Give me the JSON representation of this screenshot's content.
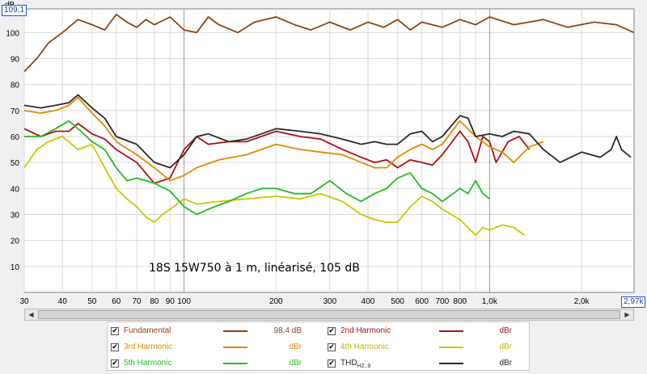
{
  "chart_data": {
    "type": "line",
    "annotation": "18S 15W750 à 1 m, linéarisé, 105 dB",
    "ylabel": "dB",
    "ylim": [
      0,
      109.1
    ],
    "xlim": [
      30,
      2970
    ],
    "x_scale": "log",
    "y_top_readout": "109,1",
    "x_right_readout": "2,97k",
    "y_ticks": [
      10,
      20,
      30,
      40,
      50,
      60,
      70,
      80,
      90,
      100
    ],
    "x_ticks": [
      {
        "v": 30,
        "label": "30"
      },
      {
        "v": 40,
        "label": "40"
      },
      {
        "v": 50,
        "label": "50"
      },
      {
        "v": 60,
        "label": "60"
      },
      {
        "v": 70,
        "label": "70"
      },
      {
        "v": 80,
        "label": "80"
      },
      {
        "v": 90,
        "label": "90"
      },
      {
        "v": 100,
        "label": "100"
      },
      {
        "v": 200,
        "label": "200"
      },
      {
        "v": 300,
        "label": "300"
      },
      {
        "v": 400,
        "label": "400"
      },
      {
        "v": 500,
        "label": "500"
      },
      {
        "v": 600,
        "label": "600"
      },
      {
        "v": 700,
        "label": "700"
      },
      {
        "v": 800,
        "label": "800"
      },
      {
        "v": 1000,
        "label": "1,0k"
      },
      {
        "v": 2000,
        "label": "2,0k"
      }
    ],
    "grid": true,
    "series": [
      {
        "name": "Fundamental",
        "color": "#8b4513",
        "value": "98,4 dB",
        "points": [
          [
            30,
            85
          ],
          [
            33,
            90
          ],
          [
            36,
            96
          ],
          [
            40,
            100
          ],
          [
            45,
            105
          ],
          [
            50,
            103
          ],
          [
            55,
            101
          ],
          [
            60,
            107
          ],
          [
            65,
            104
          ],
          [
            70,
            102
          ],
          [
            75,
            105
          ],
          [
            80,
            103
          ],
          [
            90,
            106
          ],
          [
            100,
            101
          ],
          [
            110,
            100
          ],
          [
            120,
            106
          ],
          [
            130,
            103
          ],
          [
            150,
            100
          ],
          [
            170,
            104
          ],
          [
            200,
            106
          ],
          [
            230,
            103
          ],
          [
            260,
            101
          ],
          [
            300,
            104
          ],
          [
            350,
            101
          ],
          [
            400,
            104
          ],
          [
            450,
            102
          ],
          [
            500,
            105
          ],
          [
            550,
            101
          ],
          [
            600,
            104
          ],
          [
            700,
            102
          ],
          [
            800,
            105
          ],
          [
            900,
            103
          ],
          [
            1000,
            106
          ],
          [
            1200,
            103
          ],
          [
            1500,
            105
          ],
          [
            1800,
            102
          ],
          [
            2200,
            104
          ],
          [
            2600,
            103
          ],
          [
            2970,
            100
          ]
        ]
      },
      {
        "name": "2nd Harmonic",
        "color": "#b01010",
        "value": "dBr",
        "points": [
          [
            30,
            63
          ],
          [
            34,
            60
          ],
          [
            38,
            62
          ],
          [
            42,
            62
          ],
          [
            45,
            65
          ],
          [
            50,
            61
          ],
          [
            55,
            59
          ],
          [
            60,
            55
          ],
          [
            70,
            50
          ],
          [
            80,
            42
          ],
          [
            90,
            44
          ],
          [
            100,
            55
          ],
          [
            110,
            60
          ],
          [
            120,
            57
          ],
          [
            140,
            58
          ],
          [
            160,
            58
          ],
          [
            200,
            62
          ],
          [
            240,
            60
          ],
          [
            280,
            59
          ],
          [
            330,
            55
          ],
          [
            380,
            52
          ],
          [
            420,
            50
          ],
          [
            460,
            51
          ],
          [
            500,
            48
          ],
          [
            550,
            51
          ],
          [
            600,
            50
          ],
          [
            650,
            49
          ],
          [
            700,
            53
          ],
          [
            800,
            62
          ],
          [
            850,
            58
          ],
          [
            900,
            50
          ],
          [
            950,
            60
          ],
          [
            1000,
            58
          ],
          [
            1050,
            50
          ],
          [
            1150,
            58
          ],
          [
            1250,
            60
          ],
          [
            1350,
            55
          ]
        ]
      },
      {
        "name": "3rd Harmonic",
        "color": "#e08a00",
        "value": "dBr",
        "points": [
          [
            30,
            70
          ],
          [
            34,
            69
          ],
          [
            38,
            70
          ],
          [
            42,
            72
          ],
          [
            45,
            75
          ],
          [
            50,
            69
          ],
          [
            55,
            64
          ],
          [
            60,
            58
          ],
          [
            70,
            53
          ],
          [
            80,
            48
          ],
          [
            90,
            43
          ],
          [
            100,
            45
          ],
          [
            110,
            48
          ],
          [
            130,
            51
          ],
          [
            160,
            53
          ],
          [
            200,
            57
          ],
          [
            240,
            55
          ],
          [
            280,
            54
          ],
          [
            330,
            53
          ],
          [
            380,
            50
          ],
          [
            420,
            48
          ],
          [
            460,
            48
          ],
          [
            500,
            52
          ],
          [
            550,
            55
          ],
          [
            600,
            57
          ],
          [
            650,
            55
          ],
          [
            700,
            57
          ],
          [
            800,
            66
          ],
          [
            900,
            60
          ],
          [
            1000,
            56
          ],
          [
            1100,
            54
          ],
          [
            1200,
            50
          ],
          [
            1350,
            56
          ],
          [
            1500,
            58
          ]
        ]
      },
      {
        "name": "4th Harmonic",
        "color": "#c8c800",
        "value": "dBr",
        "points": [
          [
            30,
            48
          ],
          [
            33,
            55
          ],
          [
            36,
            58
          ],
          [
            40,
            60
          ],
          [
            45,
            55
          ],
          [
            50,
            57
          ],
          [
            55,
            48
          ],
          [
            60,
            40
          ],
          [
            65,
            36
          ],
          [
            70,
            33
          ],
          [
            75,
            29
          ],
          [
            80,
            27
          ],
          [
            85,
            30
          ],
          [
            90,
            32
          ],
          [
            100,
            36
          ],
          [
            110,
            34
          ],
          [
            130,
            35
          ],
          [
            160,
            36
          ],
          [
            200,
            37
          ],
          [
            240,
            36
          ],
          [
            280,
            38
          ],
          [
            330,
            35
          ],
          [
            380,
            30
          ],
          [
            420,
            28
          ],
          [
            460,
            27
          ],
          [
            500,
            27
          ],
          [
            550,
            33
          ],
          [
            600,
            37
          ],
          [
            650,
            35
          ],
          [
            700,
            32
          ],
          [
            800,
            28
          ],
          [
            900,
            22
          ],
          [
            950,
            25
          ],
          [
            1000,
            24
          ],
          [
            1100,
            26
          ],
          [
            1200,
            25
          ],
          [
            1300,
            22
          ]
        ]
      },
      {
        "name": "5th Harmonic",
        "color": "#22bb22",
        "value": "dBr",
        "points": [
          [
            30,
            60
          ],
          [
            34,
            60
          ],
          [
            38,
            63
          ],
          [
            42,
            66
          ],
          [
            46,
            62
          ],
          [
            50,
            58
          ],
          [
            55,
            55
          ],
          [
            60,
            48
          ],
          [
            65,
            43
          ],
          [
            70,
            44
          ],
          [
            80,
            42
          ],
          [
            90,
            39
          ],
          [
            100,
            33
          ],
          [
            110,
            30
          ],
          [
            120,
            32
          ],
          [
            140,
            35
          ],
          [
            160,
            38
          ],
          [
            180,
            40
          ],
          [
            200,
            40
          ],
          [
            230,
            38
          ],
          [
            260,
            38
          ],
          [
            300,
            43
          ],
          [
            340,
            38
          ],
          [
            380,
            35
          ],
          [
            420,
            38
          ],
          [
            460,
            40
          ],
          [
            500,
            44
          ],
          [
            550,
            46
          ],
          [
            600,
            40
          ],
          [
            650,
            38
          ],
          [
            700,
            35
          ],
          [
            760,
            38
          ],
          [
            800,
            40
          ],
          [
            850,
            38
          ],
          [
            900,
            43
          ],
          [
            950,
            38
          ],
          [
            1000,
            36
          ]
        ]
      },
      {
        "name": "THD",
        "name_sub": "H2..9",
        "color": "#2a2a2a",
        "value": "dBr",
        "points": [
          [
            30,
            72
          ],
          [
            34,
            71
          ],
          [
            38,
            72
          ],
          [
            42,
            73
          ],
          [
            45,
            76
          ],
          [
            50,
            71
          ],
          [
            55,
            67
          ],
          [
            60,
            60
          ],
          [
            70,
            57
          ],
          [
            80,
            50
          ],
          [
            90,
            48
          ],
          [
            100,
            53
          ],
          [
            110,
            60
          ],
          [
            120,
            61
          ],
          [
            140,
            58
          ],
          [
            160,
            59
          ],
          [
            200,
            63
          ],
          [
            240,
            62
          ],
          [
            280,
            61
          ],
          [
            330,
            59
          ],
          [
            380,
            57
          ],
          [
            420,
            58
          ],
          [
            460,
            57
          ],
          [
            500,
            57
          ],
          [
            550,
            61
          ],
          [
            600,
            62
          ],
          [
            650,
            58
          ],
          [
            700,
            60
          ],
          [
            800,
            68
          ],
          [
            850,
            67
          ],
          [
            900,
            60
          ],
          [
            1000,
            61
          ],
          [
            1100,
            60
          ],
          [
            1200,
            62
          ],
          [
            1350,
            61
          ],
          [
            1500,
            55
          ],
          [
            1700,
            50
          ],
          [
            2000,
            54
          ],
          [
            2300,
            52
          ],
          [
            2500,
            55
          ],
          [
            2600,
            60
          ],
          [
            2700,
            55
          ],
          [
            2900,
            52
          ]
        ]
      }
    ]
  }
}
